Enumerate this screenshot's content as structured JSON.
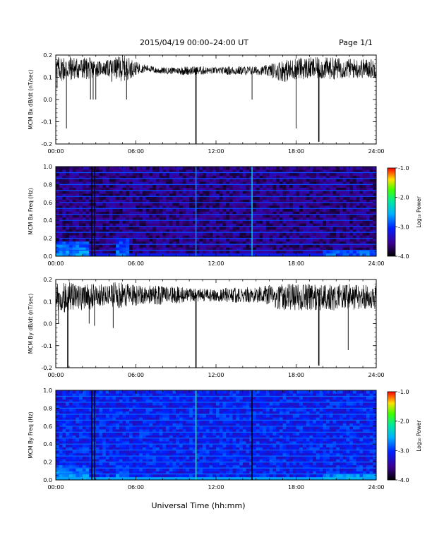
{
  "header": {
    "title": "2015/04/19   00:00–24:00 UT",
    "page_label": "Page 1/1"
  },
  "xaxis_label": "Universal Time (hh:mm)",
  "time_ticks": [
    "00:00",
    "06:00",
    "12:00",
    "18:00",
    "24:00"
  ],
  "colorbar": {
    "label": "Log₁₀ Power",
    "range": [
      -4.0,
      -1.0
    ],
    "tick_labels": [
      "-1.0",
      "-2.0",
      "-3.0",
      "-4.0"
    ],
    "tick_values": [
      -1.0,
      -2.0,
      -3.0,
      -4.0
    ]
  },
  "chart_data": [
    {
      "type": "line",
      "name": "bx-timeseries",
      "ylabel": "MCM Bx dB/dt (nT/sec)",
      "xlim": [
        0,
        24
      ],
      "ylim": [
        -0.2,
        0.2
      ],
      "yticks": [
        0.2,
        0.1,
        0.0,
        -0.1,
        -0.2
      ],
      "ytick_labels": [
        "0.2",
        "0.1",
        "0.0",
        "-0.1",
        "-0.2"
      ],
      "envelope": {
        "x": [
          0,
          0.5,
          1,
          1.5,
          2,
          2.5,
          3,
          3.5,
          4,
          4.5,
          5,
          5.5,
          6,
          6.5,
          7,
          7.5,
          8,
          8.5,
          9,
          9.5,
          10,
          10.5,
          11,
          11.5,
          12,
          12.5,
          13,
          13.5,
          14,
          14.5,
          15,
          15.5,
          16,
          16.5,
          17,
          17.5,
          18,
          18.5,
          19,
          19.5,
          20,
          20.5,
          21,
          21.5,
          22,
          22.5,
          23,
          23.5,
          24
        ],
        "center": [
          0.14,
          0.14,
          0.14,
          0.14,
          0.14,
          0.14,
          0.14,
          0.14,
          0.14,
          0.14,
          0.14,
          0.14,
          0.14,
          0.14,
          0.14,
          0.13,
          0.13,
          0.13,
          0.13,
          0.13,
          0.13,
          0.13,
          0.13,
          0.13,
          0.13,
          0.13,
          0.13,
          0.13,
          0.13,
          0.13,
          0.13,
          0.13,
          0.13,
          0.13,
          0.13,
          0.13,
          0.14,
          0.14,
          0.14,
          0.14,
          0.14,
          0.14,
          0.14,
          0.14,
          0.14,
          0.14,
          0.14,
          0.14,
          0.14
        ],
        "amplitude": [
          0.05,
          0.06,
          0.06,
          0.05,
          0.05,
          0.05,
          0.04,
          0.03,
          0.04,
          0.05,
          0.06,
          0.05,
          0.03,
          0.02,
          0.015,
          0.015,
          0.015,
          0.015,
          0.015,
          0.02,
          0.02,
          0.02,
          0.02,
          0.015,
          0.015,
          0.015,
          0.02,
          0.02,
          0.02,
          0.02,
          0.02,
          0.02,
          0.03,
          0.04,
          0.05,
          0.05,
          0.05,
          0.05,
          0.05,
          0.05,
          0.05,
          0.05,
          0.05,
          0.045,
          0.045,
          0.045,
          0.045,
          0.045,
          0.045
        ]
      },
      "spikes": [
        {
          "t": 0.1,
          "y": 0.05
        },
        {
          "t": 0.8,
          "y": -0.13
        },
        {
          "t": 2.6,
          "y": 0.0
        },
        {
          "t": 2.8,
          "y": 0.0
        },
        {
          "t": 3.0,
          "y": 0.0
        },
        {
          "t": 4.2,
          "y": 0.08
        },
        {
          "t": 5.3,
          "y": 0.0
        },
        {
          "t": 10.5,
          "y": -0.2
        },
        {
          "t": 14.7,
          "y": 0.0
        },
        {
          "t": 18.0,
          "y": -0.13
        },
        {
          "t": 19.7,
          "y": -0.19
        }
      ]
    },
    {
      "type": "heatmap",
      "name": "bx-spectrogram",
      "ylabel": "MCM Bx Freq (Hz)",
      "xlim": [
        0,
        24
      ],
      "ylim": [
        0,
        1.0
      ],
      "yticks": [
        1.0,
        0.8,
        0.6,
        0.4,
        0.2,
        0.0
      ],
      "ytick_labels": [
        "1.0",
        "0.8",
        "0.6",
        "0.4",
        "0.2",
        "0.0"
      ],
      "background_log_power": -3.6,
      "harmonic_lines_hz": [
        0.067,
        0.133,
        0.2,
        0.267,
        0.333,
        0.4,
        0.467,
        0.533,
        0.6,
        0.667,
        0.733,
        0.8,
        0.867,
        0.933,
        1.0
      ],
      "harmonic_log_power": -2.9,
      "data_gaps_hours": [
        2.7,
        2.9
      ],
      "vertical_events": [
        {
          "t": 10.5,
          "log_power": -2.7
        },
        {
          "t": 14.7,
          "log_power": -2.4
        }
      ],
      "low_freq_enhancements": [
        {
          "t_start": 0.0,
          "t_end": 2.6,
          "f_max": 0.15,
          "log_power": -2.6
        },
        {
          "t_start": 4.5,
          "t_end": 5.4,
          "f_max": 0.2,
          "log_power": -2.7
        },
        {
          "t_start": 20.0,
          "t_end": 24.0,
          "f_max": 0.08,
          "log_power": -2.8
        }
      ]
    },
    {
      "type": "line",
      "name": "by-timeseries",
      "ylabel": "MCM By dB/dt (nT/sec)",
      "xlim": [
        0,
        24
      ],
      "ylim": [
        -0.2,
        0.2
      ],
      "yticks": [
        0.2,
        0.1,
        0.0,
        -0.1,
        -0.2
      ],
      "ytick_labels": [
        "0.2",
        "0.1",
        "0.0",
        "-0.1",
        "-0.2"
      ],
      "envelope": {
        "x": [
          0,
          0.5,
          1,
          1.5,
          2,
          2.5,
          3,
          3.5,
          4,
          4.5,
          5,
          5.5,
          6,
          6.5,
          7,
          7.5,
          8,
          8.5,
          9,
          9.5,
          10,
          10.5,
          11,
          11.5,
          12,
          12.5,
          13,
          13.5,
          14,
          14.5,
          15,
          15.5,
          16,
          16.5,
          17,
          17.5,
          18,
          18.5,
          19,
          19.5,
          20,
          20.5,
          21,
          21.5,
          22,
          22.5,
          23,
          23.5,
          24
        ],
        "center": [
          0.12,
          0.12,
          0.12,
          0.12,
          0.12,
          0.12,
          0.13,
          0.13,
          0.13,
          0.13,
          0.13,
          0.13,
          0.13,
          0.13,
          0.13,
          0.13,
          0.13,
          0.13,
          0.13,
          0.13,
          0.13,
          0.13,
          0.13,
          0.13,
          0.13,
          0.13,
          0.13,
          0.13,
          0.13,
          0.13,
          0.13,
          0.13,
          0.13,
          0.12,
          0.12,
          0.12,
          0.12,
          0.12,
          0.12,
          0.12,
          0.12,
          0.12,
          0.12,
          0.12,
          0.12,
          0.12,
          0.12,
          0.12,
          0.12
        ],
        "amplitude": [
          0.06,
          0.07,
          0.07,
          0.06,
          0.06,
          0.06,
          0.05,
          0.05,
          0.05,
          0.06,
          0.06,
          0.05,
          0.05,
          0.045,
          0.045,
          0.045,
          0.045,
          0.04,
          0.04,
          0.035,
          0.03,
          0.03,
          0.03,
          0.03,
          0.03,
          0.03,
          0.035,
          0.035,
          0.035,
          0.035,
          0.035,
          0.04,
          0.045,
          0.05,
          0.06,
          0.06,
          0.06,
          0.06,
          0.06,
          0.06,
          0.06,
          0.06,
          0.06,
          0.06,
          0.06,
          0.055,
          0.055,
          0.055,
          0.055
        ]
      },
      "spikes": [
        {
          "t": 0.2,
          "y": 0.0
        },
        {
          "t": 0.9,
          "y": -0.2
        },
        {
          "t": 2.5,
          "y": 0.0
        },
        {
          "t": 2.9,
          "y": -0.01
        },
        {
          "t": 4.3,
          "y": -0.02
        },
        {
          "t": 10.5,
          "y": -0.2
        },
        {
          "t": 19.7,
          "y": -0.19
        },
        {
          "t": 21.9,
          "y": -0.12
        }
      ]
    },
    {
      "type": "heatmap",
      "name": "by-spectrogram",
      "ylabel": "MCM By Freq (Hz)",
      "xlim": [
        0,
        24
      ],
      "ylim": [
        0,
        1.0
      ],
      "yticks": [
        1.0,
        0.8,
        0.6,
        0.4,
        0.2,
        0.0
      ],
      "ytick_labels": [
        "1.0",
        "0.8",
        "0.6",
        "0.4",
        "0.2",
        "0.0"
      ],
      "background_log_power": -3.1,
      "harmonic_lines_hz": [
        0.067,
        0.133,
        0.2,
        0.267,
        0.333,
        0.4,
        0.467,
        0.533,
        0.6,
        0.667,
        0.733,
        0.8,
        0.867,
        0.933,
        1.0
      ],
      "harmonic_log_power": -2.8,
      "data_gaps_hours": [
        2.7,
        2.9,
        14.7
      ],
      "vertical_events": [
        {
          "t": 10.5,
          "log_power": -2.0
        }
      ],
      "low_freq_enhancements": [
        {
          "t_start": 0.0,
          "t_end": 2.6,
          "f_max": 0.15,
          "log_power": -2.6
        },
        {
          "t_start": 4.5,
          "t_end": 5.4,
          "f_max": 0.2,
          "log_power": -2.7
        },
        {
          "t_start": 20.0,
          "t_end": 24.0,
          "f_max": 0.08,
          "log_power": -2.6
        }
      ]
    }
  ]
}
